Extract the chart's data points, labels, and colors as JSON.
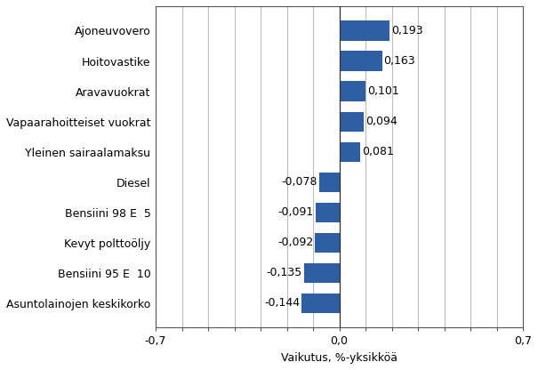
{
  "categories": [
    "Asuntolainojen keskikorko",
    "Bensiini 95 E  10",
    "Kevyt polttoöljy",
    "Bensiini 98 E  5",
    "Diesel",
    "Yleinen sairaalamaksu",
    "Vapaarahoitteiset vuokrat",
    "Aravavuokrat",
    "Hoitovastike",
    "Ajoneuvovero"
  ],
  "values": [
    -0.144,
    -0.135,
    -0.092,
    -0.091,
    -0.078,
    0.081,
    0.094,
    0.101,
    0.163,
    0.193
  ],
  "bar_color": "#2e5fa3",
  "xlabel": "Vaikutus, %-yksikköä",
  "xlim": [
    -0.7,
    0.7
  ],
  "xticks_grid": [
    -0.7,
    -0.6,
    -0.5,
    -0.4,
    -0.3,
    -0.2,
    -0.1,
    0.0,
    0.1,
    0.2,
    0.3,
    0.4,
    0.5,
    0.6,
    0.7
  ],
  "xticks_labeled": [
    -0.7,
    0.0,
    0.7
  ],
  "xtick_labels": [
    "-0,7",
    "0,0",
    "0,7"
  ],
  "background_color": "#ffffff",
  "grid_color": "#bbbbbb",
  "label_fontsize": 9,
  "xlabel_fontsize": 9,
  "value_label_fontsize": 9
}
